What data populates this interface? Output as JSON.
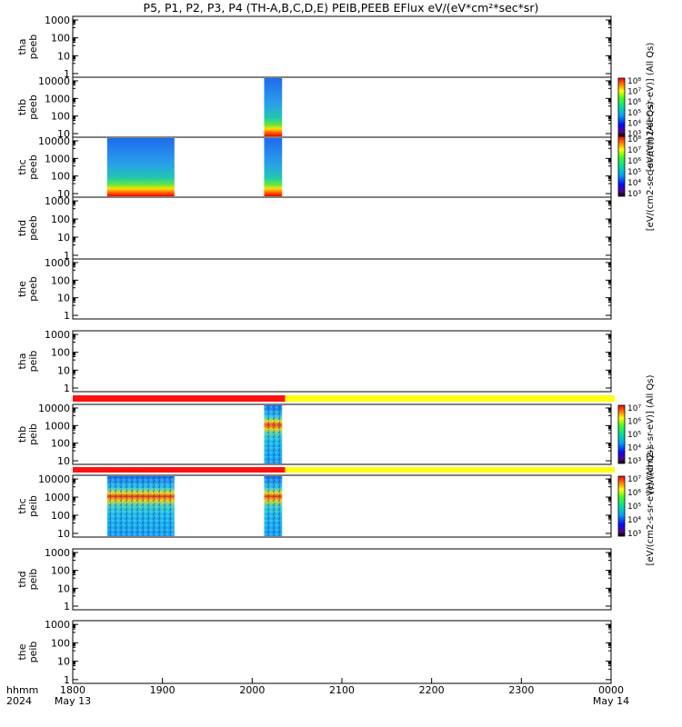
{
  "title": "P5, P1, P2, P3, P4 (TH-A,B,C,D,E) PEIB,PEEB EFlux eV/(eV*cm²*sec*sr)",
  "x_axis": {
    "label_line1": "hhmm",
    "label_line2": "2024",
    "ticks": [
      {
        "t": 0,
        "label": "1800",
        "sublabel": "May 13"
      },
      {
        "t": 100,
        "label": "1900",
        "sublabel": ""
      },
      {
        "t": 200,
        "label": "2000",
        "sublabel": ""
      },
      {
        "t": 300,
        "label": "2100",
        "sublabel": ""
      },
      {
        "t": 400,
        "label": "2200",
        "sublabel": ""
      },
      {
        "t": 500,
        "label": "2300",
        "sublabel": ""
      },
      {
        "t": 600,
        "label": "0000",
        "sublabel": "May 14"
      }
    ]
  },
  "colorbars": [
    {
      "label": "[eV/(cm2-sec-sr-eV)] (All Qs)",
      "ticks": [
        "10⁸",
        "10⁷",
        "10⁶",
        "10⁵",
        "10⁴",
        "10³"
      ]
    },
    {
      "label": "[eV/(cm2-sec-sr-eV)] (All Qs)",
      "ticks": [
        "10⁸",
        "10⁷",
        "10⁶",
        "10⁵",
        "10⁴",
        "10³"
      ]
    },
    {
      "label": "[eV/(cm2-s-sr-eV)] (All Qs)",
      "ticks": [
        "10⁷",
        "10⁶",
        "10⁵",
        "10⁴",
        "10³"
      ]
    },
    {
      "label": "[eV/(cm2-s-sr-eV)] (All Qs)",
      "ticks": [
        "10⁷",
        "10⁶",
        "10⁵",
        "10⁴",
        "10³"
      ]
    }
  ],
  "chart_data": {
    "type": "heatmap",
    "x_range_hhmm": [
      "1800",
      "0000"
    ],
    "panels": [
      {
        "probe": "tha",
        "instrument": "peeb",
        "yticks": [
          "1000",
          "100",
          "10",
          "1"
        ],
        "data": []
      },
      {
        "probe": "thb",
        "instrument": "peeb",
        "yticks": [
          "10000",
          "1000",
          "100",
          "10"
        ],
        "data": [
          {
            "t_start": "2008",
            "t_end": "2020",
            "style": "electron"
          }
        ]
      },
      {
        "probe": "thc",
        "instrument": "peeb",
        "yticks": [
          "10000",
          "1000",
          "100",
          "10"
        ],
        "data": [
          {
            "t_start": "1823",
            "t_end": "1868",
            "style": "electron"
          },
          {
            "t_start": "2008",
            "t_end": "2020",
            "style": "electron"
          }
        ]
      },
      {
        "probe": "thd",
        "instrument": "peeb",
        "yticks": [
          "1000",
          "100",
          "10",
          "1"
        ],
        "data": []
      },
      {
        "probe": "the",
        "instrument": "peeb",
        "yticks": [
          "1000",
          "100",
          "10",
          "1"
        ],
        "data": []
      },
      {
        "probe": "tha",
        "instrument": "peib",
        "yticks": [
          "1000",
          "100",
          "10",
          "1"
        ],
        "data": []
      },
      {
        "probe": "thb",
        "instrument": "peib",
        "yticks": [
          "10000",
          "1000",
          "100",
          "10"
        ],
        "data": [
          {
            "t_start": "2008",
            "t_end": "2020",
            "style": "ion"
          }
        ]
      },
      {
        "probe": "thc",
        "instrument": "peib",
        "yticks": [
          "10000",
          "1000",
          "100",
          "10"
        ],
        "data": [
          {
            "t_start": "1823",
            "t_end": "1868",
            "style": "ion"
          },
          {
            "t_start": "2008",
            "t_end": "2020",
            "style": "ion"
          }
        ]
      },
      {
        "probe": "thd",
        "instrument": "peib",
        "yticks": [
          "1000",
          "100",
          "10",
          "1"
        ],
        "data": []
      },
      {
        "probe": "the",
        "instrument": "peib",
        "yticks": [
          "1000",
          "100",
          "10",
          "1"
        ],
        "data": []
      }
    ],
    "status_bars": [
      {
        "segments": [
          {
            "t_start": "1800",
            "t_end": "2022",
            "color": "#ff1010"
          },
          {
            "t_start": "2022",
            "t_end": "0000",
            "color": "#ffff10"
          }
        ]
      },
      {
        "segments": [
          {
            "t_start": "1800",
            "t_end": "2022",
            "color": "#ff1010"
          },
          {
            "t_start": "2022",
            "t_end": "0000",
            "color": "#ffff10"
          }
        ]
      }
    ]
  }
}
